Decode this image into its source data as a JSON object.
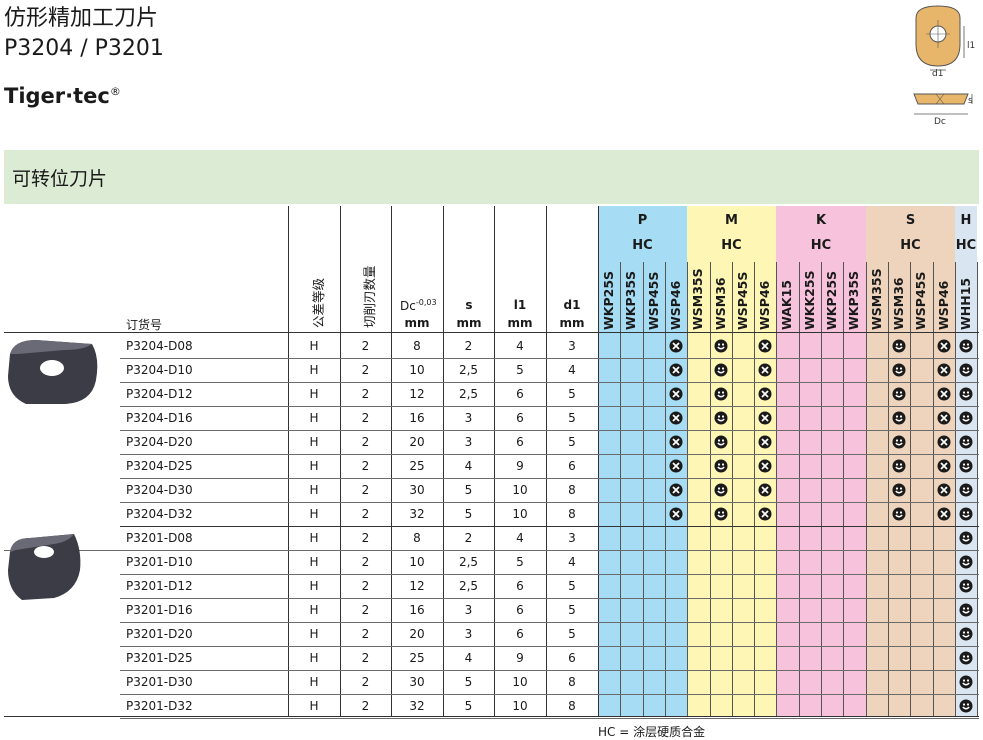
{
  "header": {
    "title_cn": "仿形精加工刀片",
    "title_code": "P3204 / P3201",
    "brand": "Tiger·tec",
    "brand_mark": "®",
    "schematic_labels": {
      "l1": "l1",
      "d1": "d1",
      "s": "s",
      "dc": "Dc"
    }
  },
  "section": {
    "title": "可转位刀片"
  },
  "columns": {
    "order_no": "订货号",
    "tolerance": "公差等级",
    "edges": "切削刃数量",
    "dc": "Dc",
    "dc_tol": "-0,03",
    "s": "s",
    "l1": "l1",
    "d1": "d1",
    "unit": "mm"
  },
  "groups": [
    {
      "letter": "P",
      "coating": "HC",
      "color": "#a6dcf4",
      "grades": [
        "WKP25S",
        "WKP35S",
        "WSP45S",
        "WSP46"
      ]
    },
    {
      "letter": "M",
      "coating": "HC",
      "color": "#fdf6b4",
      "grades": [
        "WSM35S",
        "WSM36",
        "WSP45S",
        "WSP46"
      ]
    },
    {
      "letter": "K",
      "coating": "HC",
      "color": "#f7c3dc",
      "grades": [
        "WAK15",
        "WKK25S",
        "WKP25S",
        "WKP35S"
      ]
    },
    {
      "letter": "S",
      "coating": "HC",
      "color": "#efd4bd",
      "grades": [
        "WSM35S",
        "WSM36",
        "WSP45S",
        "WSP46"
      ]
    },
    {
      "letter": "H",
      "coating": "HC",
      "color": "#d9e6f2",
      "grades": [
        "WHH15"
      ]
    }
  ],
  "rows": [
    {
      "order": "P3204-D08",
      "tol": "H",
      "edges": "2",
      "dc": "8",
      "s": "2",
      "l1": "4",
      "d1": "3",
      "marks": [
        [
          3,
          "x"
        ],
        [
          5,
          "s"
        ],
        [
          7,
          "x"
        ],
        [
          13,
          "s"
        ],
        [
          15,
          "x"
        ],
        [
          16,
          "s"
        ]
      ]
    },
    {
      "order": "P3204-D10",
      "tol": "H",
      "edges": "2",
      "dc": "10",
      "s": "2,5",
      "l1": "5",
      "d1": "4",
      "marks": [
        [
          3,
          "x"
        ],
        [
          5,
          "s"
        ],
        [
          7,
          "x"
        ],
        [
          13,
          "s"
        ],
        [
          15,
          "x"
        ],
        [
          16,
          "s"
        ]
      ]
    },
    {
      "order": "P3204-D12",
      "tol": "H",
      "edges": "2",
      "dc": "12",
      "s": "2,5",
      "l1": "6",
      "d1": "5",
      "marks": [
        [
          3,
          "x"
        ],
        [
          5,
          "s"
        ],
        [
          7,
          "x"
        ],
        [
          13,
          "s"
        ],
        [
          15,
          "x"
        ],
        [
          16,
          "s"
        ]
      ]
    },
    {
      "order": "P3204-D16",
      "tol": "H",
      "edges": "2",
      "dc": "16",
      "s": "3",
      "l1": "6",
      "d1": "5",
      "marks": [
        [
          3,
          "x"
        ],
        [
          5,
          "s"
        ],
        [
          7,
          "x"
        ],
        [
          13,
          "s"
        ],
        [
          15,
          "x"
        ],
        [
          16,
          "s"
        ]
      ]
    },
    {
      "order": "P3204-D20",
      "tol": "H",
      "edges": "2",
      "dc": "20",
      "s": "3",
      "l1": "6",
      "d1": "5",
      "marks": [
        [
          3,
          "x"
        ],
        [
          5,
          "s"
        ],
        [
          7,
          "x"
        ],
        [
          13,
          "s"
        ],
        [
          15,
          "x"
        ],
        [
          16,
          "s"
        ]
      ]
    },
    {
      "order": "P3204-D25",
      "tol": "H",
      "edges": "2",
      "dc": "25",
      "s": "4",
      "l1": "9",
      "d1": "6",
      "marks": [
        [
          3,
          "x"
        ],
        [
          5,
          "s"
        ],
        [
          7,
          "x"
        ],
        [
          13,
          "s"
        ],
        [
          15,
          "x"
        ],
        [
          16,
          "s"
        ]
      ]
    },
    {
      "order": "P3204-D30",
      "tol": "H",
      "edges": "2",
      "dc": "30",
      "s": "5",
      "l1": "10",
      "d1": "8",
      "marks": [
        [
          3,
          "x"
        ],
        [
          5,
          "s"
        ],
        [
          7,
          "x"
        ],
        [
          13,
          "s"
        ],
        [
          15,
          "x"
        ],
        [
          16,
          "s"
        ]
      ]
    },
    {
      "order": "P3204-D32",
      "tol": "H",
      "edges": "2",
      "dc": "32",
      "s": "5",
      "l1": "10",
      "d1": "8",
      "marks": [
        [
          3,
          "x"
        ],
        [
          5,
          "s"
        ],
        [
          7,
          "x"
        ],
        [
          13,
          "s"
        ],
        [
          15,
          "x"
        ],
        [
          16,
          "s"
        ]
      ]
    },
    {
      "order": "P3201-D08",
      "tol": "H",
      "edges": "2",
      "dc": "8",
      "s": "2",
      "l1": "4",
      "d1": "3",
      "marks": [
        [
          16,
          "s"
        ]
      ]
    },
    {
      "order": "P3201-D10",
      "tol": "H",
      "edges": "2",
      "dc": "10",
      "s": "2,5",
      "l1": "5",
      "d1": "4",
      "marks": [
        [
          16,
          "s"
        ]
      ]
    },
    {
      "order": "P3201-D12",
      "tol": "H",
      "edges": "2",
      "dc": "12",
      "s": "2,5",
      "l1": "6",
      "d1": "5",
      "marks": [
        [
          16,
          "s"
        ]
      ]
    },
    {
      "order": "P3201-D16",
      "tol": "H",
      "edges": "2",
      "dc": "16",
      "s": "3",
      "l1": "6",
      "d1": "5",
      "marks": [
        [
          16,
          "s"
        ]
      ]
    },
    {
      "order": "P3201-D20",
      "tol": "H",
      "edges": "2",
      "dc": "20",
      "s": "3",
      "l1": "6",
      "d1": "5",
      "marks": [
        [
          16,
          "s"
        ]
      ]
    },
    {
      "order": "P3201-D25",
      "tol": "H",
      "edges": "2",
      "dc": "25",
      "s": "4",
      "l1": "9",
      "d1": "6",
      "marks": [
        [
          16,
          "s"
        ]
      ]
    },
    {
      "order": "P3201-D30",
      "tol": "H",
      "edges": "2",
      "dc": "30",
      "s": "5",
      "l1": "10",
      "d1": "8",
      "marks": [
        [
          16,
          "s"
        ]
      ]
    },
    {
      "order": "P3201-D32",
      "tol": "H",
      "edges": "2",
      "dc": "32",
      "s": "5",
      "l1": "10",
      "d1": "8",
      "marks": [
        [
          16,
          "s"
        ]
      ]
    }
  ],
  "footnote": "HC = 涂层硬质合金"
}
